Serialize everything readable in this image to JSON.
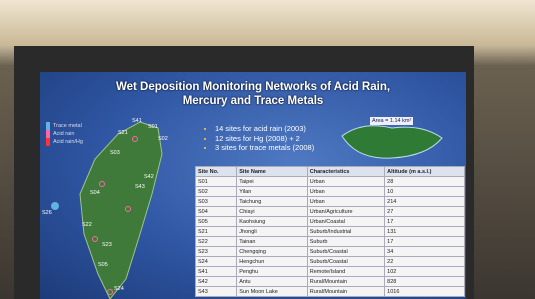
{
  "slide": {
    "title": [
      "Wet Deposition Monitoring Networks of Acid Rain,",
      "Mercury and Trace Metals"
    ],
    "legend": [
      "Trace metal",
      "Acid rain",
      "Acid rain/Hg"
    ],
    "bullets": [
      "14 sites for acid rain (2003)",
      "12 sites for Hg (2008) + 2",
      "3 sites for trace metals (2008)"
    ],
    "inset_label": "Area = 1.14 km²",
    "map_labels": [
      "S41",
      "S01",
      "S02",
      "S21",
      "S03",
      "S42",
      "S43",
      "S04",
      "S26",
      "S22",
      "S23",
      "S05",
      "S24"
    ],
    "table": {
      "header": [
        "Site No.",
        "Site Name",
        "Characteristics",
        "Altitude (m a.s.l.)"
      ],
      "rows": [
        [
          "S01",
          "Taipei",
          "Urban",
          "28"
        ],
        [
          "S02",
          "Yilan",
          "Urban",
          "10"
        ],
        [
          "S03",
          "Taichung",
          "Urban",
          "214"
        ],
        [
          "S04",
          "Chiayi",
          "Urban/Agriculture",
          "27"
        ],
        [
          "S05",
          "Kaohsiung",
          "Urban/Coastal",
          "17"
        ],
        [
          "S21",
          "Jhongli",
          "Suburb/Industrial",
          "131"
        ],
        [
          "S22",
          "Tainan",
          "Suburb",
          "17"
        ],
        [
          "S23",
          "Chengqing",
          "Suburb/Coastal",
          "34"
        ],
        [
          "S24",
          "Hengchun",
          "Suburb/Coastal",
          "22"
        ],
        [
          "S41",
          "Penghu",
          "Remote/Island",
          "102"
        ],
        [
          "S42",
          "Antu",
          "Rural/Mountain",
          "828"
        ],
        [
          "S43",
          "Sun Moon Lake",
          "Rural/Mountain",
          "1016"
        ]
      ]
    }
  }
}
